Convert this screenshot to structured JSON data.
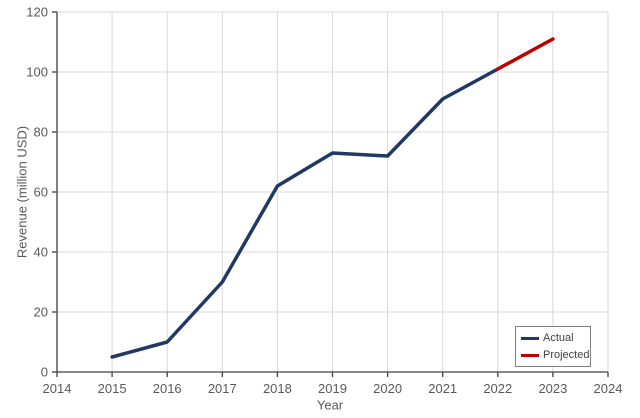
{
  "styles": {
    "background": "#ffffff",
    "grid_color": "#d9d9d9",
    "axis_color": "#404040",
    "tick_label_color": "#595959",
    "axis_title_color": "#595959",
    "legend_border_color": "#808080",
    "legend_text_color": "#404040"
  },
  "chart_data": {
    "type": "line",
    "title": "",
    "xlabel": "Year",
    "ylabel": "Revenue (million USD)",
    "xlim": [
      2014,
      2024
    ],
    "ylim": [
      0,
      120
    ],
    "x_ticks": [
      2014,
      2015,
      2016,
      2017,
      2018,
      2019,
      2020,
      2021,
      2022,
      2023,
      2024
    ],
    "y_ticks": [
      0,
      20,
      40,
      60,
      80,
      100,
      120
    ],
    "grid": true,
    "legend_position": "bottom-right",
    "series": [
      {
        "name": "Actual",
        "color": "#1f3864",
        "x": [
          2015,
          2016,
          2017,
          2018,
          2019,
          2020,
          2021,
          2022
        ],
        "values": [
          5,
          10,
          30,
          62,
          73,
          72,
          91,
          101
        ]
      },
      {
        "name": "Projected",
        "color": "#c00000",
        "x": [
          2022,
          2023
        ],
        "values": [
          101,
          111
        ]
      }
    ]
  }
}
